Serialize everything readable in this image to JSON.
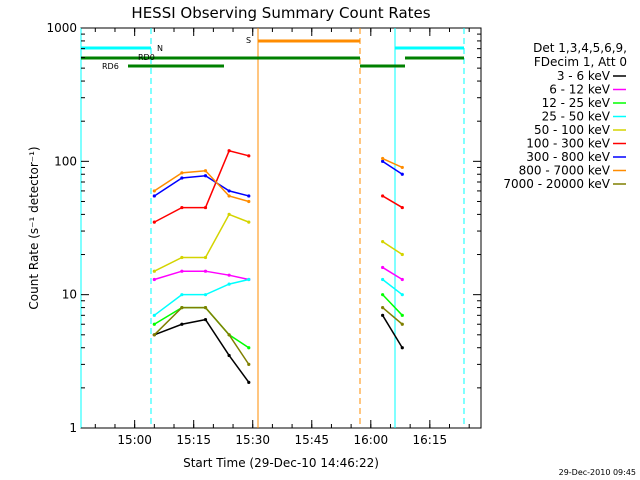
{
  "chart_data": {
    "type": "line",
    "title": "HESSI Observing Summary Count Rates",
    "xlabel": "Start Time (29-Dec-10 14:46:22)",
    "ylabel": "Count Rate (s⁻¹ detector⁻¹)",
    "y_scale": "log",
    "ylim": [
      1,
      1000
    ],
    "xlim": [
      "14:46:22",
      "16:28"
    ],
    "x_ticks": [
      "15:00",
      "15:15",
      "15:30",
      "15:45",
      "16:00",
      "16:15"
    ],
    "y_ticks": [
      "1",
      "10",
      "100",
      "1000"
    ],
    "grid": false,
    "legend_position": "right",
    "legend_header": [
      "Det 1,3,4,5,6,9,",
      "FDecim 1, Att 0"
    ],
    "footer_date": "29-Dec-2010 09:45",
    "series": [
      {
        "name": "3 - 6 keV",
        "color": "#000000",
        "x": [
          "15:05",
          "15:12",
          "15:18",
          "15:24",
          "15:29",
          "16:03",
          "16:08"
        ],
        "values": [
          5,
          6,
          6.5,
          3.5,
          2.2,
          7,
          4
        ]
      },
      {
        "name": "6 - 12 keV",
        "color": "#ff00ff",
        "x": [
          "15:05",
          "15:12",
          "15:18",
          "15:24",
          "15:29",
          "16:03",
          "16:08"
        ],
        "values": [
          13,
          15,
          15,
          14,
          13,
          16,
          13
        ]
      },
      {
        "name": "12 - 25 keV",
        "color": "#00ff00",
        "x": [
          "15:05",
          "15:12",
          "15:18",
          "15:24",
          "15:29",
          "16:03",
          "16:08"
        ],
        "values": [
          6,
          8,
          8,
          5,
          4,
          10,
          7
        ]
      },
      {
        "name": "25 - 50 keV",
        "color": "#00ffff",
        "x": [
          "15:05",
          "15:12",
          "15:18",
          "15:24",
          "15:29",
          "16:03",
          "16:08"
        ],
        "values": [
          7,
          10,
          10,
          12,
          13,
          13,
          10
        ]
      },
      {
        "name": "50 - 100 keV",
        "color": "#d4d400",
        "x": [
          "15:05",
          "15:12",
          "15:18",
          "15:24",
          "15:29",
          "16:03",
          "16:08"
        ],
        "values": [
          15,
          19,
          19,
          40,
          35,
          25,
          20
        ]
      },
      {
        "name": "100 - 300 keV",
        "color": "#ff0000",
        "x": [
          "15:05",
          "15:12",
          "15:18",
          "15:24",
          "15:29",
          "16:03",
          "16:08"
        ],
        "values": [
          35,
          45,
          45,
          120,
          110,
          55,
          45
        ]
      },
      {
        "name": "300 - 800 keV",
        "color": "#0000ff",
        "x": [
          "15:05",
          "15:12",
          "15:18",
          "15:24",
          "15:29",
          "16:03",
          "16:08"
        ],
        "values": [
          55,
          75,
          78,
          60,
          55,
          100,
          80
        ]
      },
      {
        "name": "800 - 7000 keV",
        "color": "#ff8c00",
        "x": [
          "15:05",
          "15:12",
          "15:18",
          "15:24",
          "15:29",
          "16:03",
          "16:08"
        ],
        "values": [
          60,
          82,
          85,
          55,
          50,
          105,
          90
        ]
      },
      {
        "name": "7000 - 20000 keV",
        "color": "#7f7f00",
        "x": [
          "15:05",
          "15:12",
          "15:18",
          "15:24",
          "15:29",
          "16:03",
          "16:08"
        ],
        "values": [
          5,
          8,
          8,
          5,
          3,
          8,
          6
        ]
      }
    ],
    "annotations": [
      {
        "text": "N",
        "color": "#00ffff"
      },
      {
        "text": "RD0",
        "color": "#008000"
      },
      {
        "text": "RD6",
        "color": "#008000"
      },
      {
        "text": "S",
        "color": "#ff8c00"
      }
    ]
  }
}
